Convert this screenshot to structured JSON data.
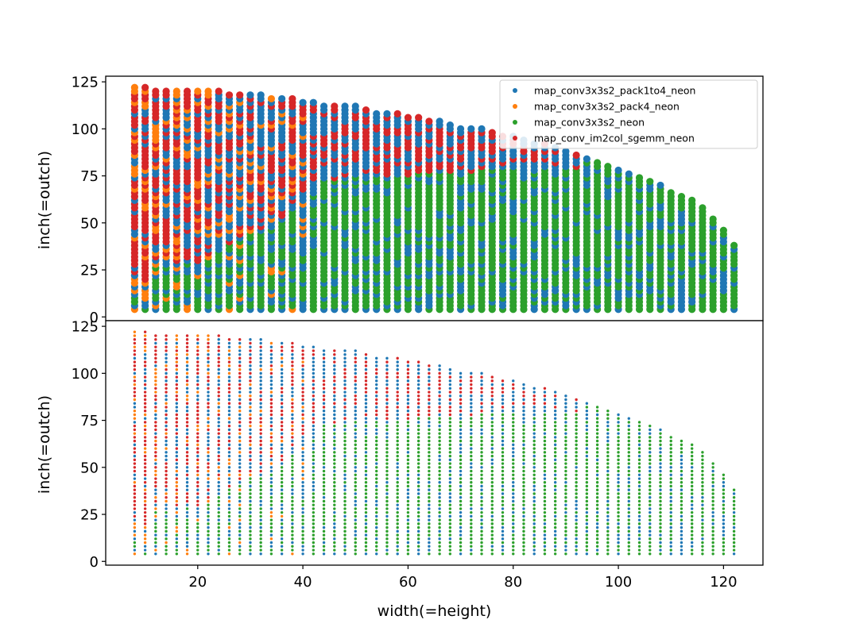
{
  "chart_data": [
    {
      "type": "scatter",
      "title": "",
      "xlabel": "",
      "ylabel": "inch(=outch)",
      "xlim": [
        2.5,
        127.5
      ],
      "ylim": [
        -2,
        128
      ],
      "xticks": [],
      "yticks": [
        0,
        25,
        50,
        75,
        100,
        125
      ],
      "ytick_labels": [
        "0",
        "25",
        "50",
        "75",
        "100",
        "125"
      ],
      "legend_position": "top-right",
      "x_values": [
        8,
        10,
        12,
        14,
        16,
        18,
        20,
        22,
        24,
        26,
        28,
        30,
        32,
        34,
        36,
        38,
        40,
        42,
        44,
        46,
        48,
        50,
        52,
        54,
        56,
        58,
        60,
        62,
        64,
        66,
        68,
        70,
        72,
        74,
        76,
        78,
        80,
        82,
        84,
        86,
        88,
        90,
        92,
        94,
        96,
        98,
        100,
        102,
        104,
        106,
        108,
        110,
        112,
        114,
        116,
        118,
        120,
        122
      ],
      "max_outch": [
        122,
        122,
        120,
        120,
        120,
        120,
        120,
        120,
        120,
        118,
        118,
        118,
        118,
        116,
        116,
        116,
        114,
        114,
        113,
        113,
        112,
        112,
        110,
        109,
        108,
        108,
        106,
        106,
        104,
        104,
        102,
        101,
        100,
        100,
        98,
        97,
        96,
        94,
        92,
        92,
        90,
        88,
        86,
        84,
        82,
        80,
        78,
        77,
        75,
        72,
        70,
        67,
        65,
        62,
        58,
        52,
        46,
        38
      ],
      "outch_step": 2,
      "marker_size": 4.6,
      "series": [
        {
          "name": "map_conv3x3s2_pack1to4_neon",
          "color": "#1f77b4"
        },
        {
          "name": "map_conv3x3s2_pack4_neon",
          "color": "#ff7f0e"
        },
        {
          "name": "map_conv3x3s2_neon",
          "color": "#2ca02c"
        },
        {
          "name": "map_conv_im2col_sgemm_neon",
          "color": "#d62728"
        }
      ]
    },
    {
      "type": "scatter",
      "title": "",
      "xlabel": "width(=height)",
      "ylabel": "inch(=outch)",
      "xlim": [
        2.5,
        127.5
      ],
      "ylim": [
        -2,
        128
      ],
      "xticks": [
        20,
        40,
        60,
        80,
        100,
        120
      ],
      "xtick_labels": [
        "20",
        "40",
        "60",
        "80",
        "100",
        "120"
      ],
      "yticks": [
        0,
        25,
        50,
        75,
        100,
        125
      ],
      "ytick_labels": [
        "0",
        "25",
        "50",
        "75",
        "100",
        "125"
      ],
      "marker_size": 1.7,
      "series_ref": "same as top panel"
    }
  ]
}
